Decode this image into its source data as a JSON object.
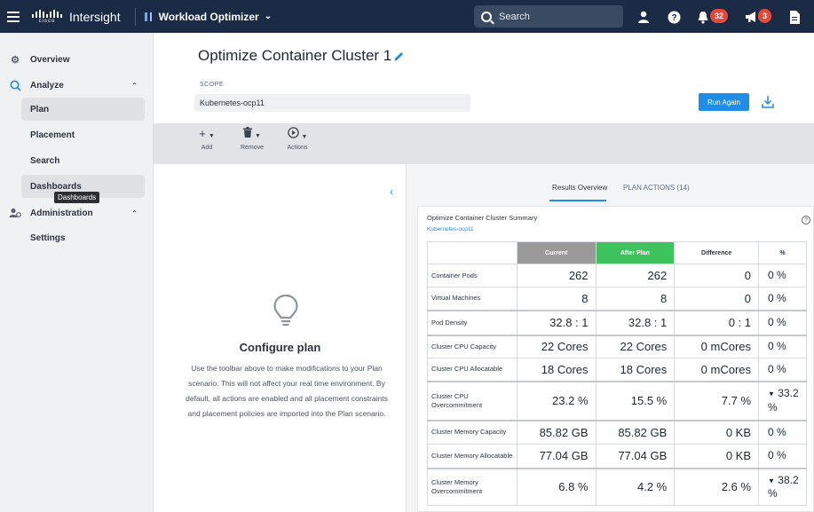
{
  "topbar": {
    "logo_word": "cisco",
    "brand": "Intersight",
    "app_name": "Workload Optimizer",
    "search_label": "Search",
    "notifications_count": "32",
    "announcements_count": "3"
  },
  "sidebar": {
    "overview": "Overview",
    "analyze": "Analyze",
    "plan": "Plan",
    "placement": "Placement",
    "search": "Search",
    "dashboards": "Dashboards",
    "tooltip": "Dashboards",
    "administration": "Administration",
    "settings": "Settings"
  },
  "header": {
    "title": "Optimize Container Cluster 1",
    "scope_label": "SCOPE",
    "scope_value": "Kubernetes-ocp11",
    "run_again": "Run Again"
  },
  "toolbar": {
    "add": "Add",
    "remove": "Remove",
    "actions": "Actions"
  },
  "configure": {
    "title": "Configure plan",
    "text": "Use the toolbar above to make modifications to your Plan scenario. This will not affect your real time environment. By default, all actions are enabled and all placement constraints and placement policies are imported into the Plan scenario."
  },
  "results": {
    "tab_overview": "Results Overview",
    "tab_actions": "PLAN ACTIONS (14)",
    "summary_title": "Optimize Container Cluster Summary",
    "summary_sub": "Kubernetes-ocp11",
    "columns": [
      "",
      "Current",
      "After Plan",
      "Difference",
      "%"
    ],
    "rows": [
      {
        "label": "Container Pods",
        "current": "262",
        "after": "262",
        "diff": "0",
        "pct": "0 %"
      },
      {
        "label": "Virtual Machines",
        "current": "8",
        "after": "8",
        "diff": "0",
        "pct": "0 %"
      },
      {
        "label": "Pod Density",
        "current": "32.8 : 1",
        "after": "32.8 : 1",
        "diff": "0 : 1",
        "pct": "0 %"
      },
      {
        "label": "Cluster CPU Capacity",
        "current": "22 Cores",
        "after": "22 Cores",
        "diff": "0 mCores",
        "pct": "0 %"
      },
      {
        "label": "Cluster CPU Allocatable",
        "current": "18 Cores",
        "after": "18 Cores",
        "diff": "0 mCores",
        "pct": "0 %"
      },
      {
        "label": "Cluster CPU Overcommitment",
        "current": "23.2 %",
        "after": "15.5 %",
        "diff": "7.7 %",
        "pct": "33.2 %"
      },
      {
        "label": "Cluster Memory Capacity",
        "current": "85.82 GB",
        "after": "85.82 GB",
        "diff": "0 KB",
        "pct": "0 %"
      },
      {
        "label": "Cluster Memory Allocatable",
        "current": "77.04 GB",
        "after": "77.04 GB",
        "diff": "0 KB",
        "pct": "0 %"
      },
      {
        "label": "Cluster Memory Overcommitment",
        "current": "6.8 %",
        "after": "4.2 %",
        "diff": "2.6 %",
        "pct": "38.2 %"
      }
    ]
  },
  "colors": {
    "topbar": "#1b2b45",
    "accent": "#1f8ce6",
    "current_header": "#9a9a9a",
    "after_header": "#3ec25d",
    "badge": "#e2493b"
  }
}
